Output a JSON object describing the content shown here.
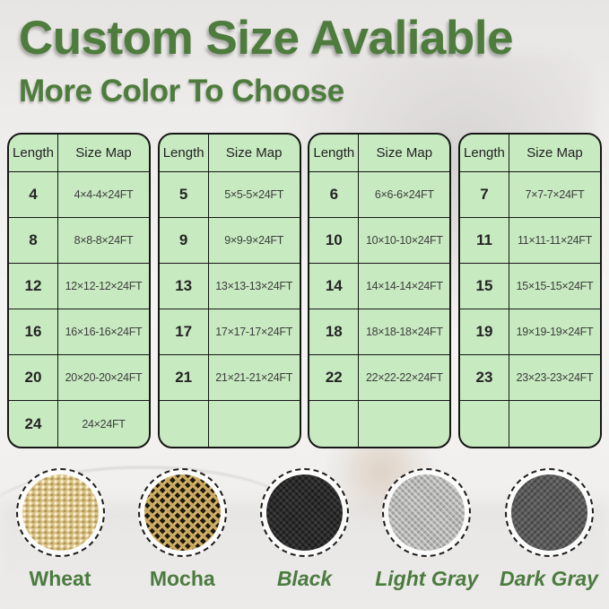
{
  "title": "Custom Size Avaliable",
  "subtitle": "More Color To Choose",
  "colors": {
    "heading_green": "#4d7c3d",
    "table_green": "#c8eac1",
    "table_border": "#161616",
    "label_green": "#4c7b40"
  },
  "tables": [
    {
      "headers": [
        "Length",
        "Size Map"
      ],
      "rows": [
        [
          "4",
          "4×4-4×24FT"
        ],
        [
          "8",
          "8×8-8×24FT"
        ],
        [
          "12",
          "12×12-12×24FT"
        ],
        [
          "16",
          "16×16-16×24FT"
        ],
        [
          "20",
          "20×20-20×24FT"
        ],
        [
          "24",
          "24×24FT"
        ]
      ]
    },
    {
      "headers": [
        "Length",
        "Size Map"
      ],
      "rows": [
        [
          "5",
          "5×5-5×24FT"
        ],
        [
          "9",
          "9×9-9×24FT"
        ],
        [
          "13",
          "13×13-13×24FT"
        ],
        [
          "17",
          "17×17-17×24FT"
        ],
        [
          "21",
          "21×21-21×24FT"
        ],
        [
          "",
          ""
        ]
      ]
    },
    {
      "headers": [
        "Length",
        "Size Map"
      ],
      "rows": [
        [
          "6",
          "6×6-6×24FT"
        ],
        [
          "10",
          "10×10-10×24FT"
        ],
        [
          "14",
          "14×14-14×24FT"
        ],
        [
          "18",
          "18×18-18×24FT"
        ],
        [
          "22",
          "22×22-22×24FT"
        ],
        [
          "",
          ""
        ]
      ]
    },
    {
      "headers": [
        "Length",
        "Size Map"
      ],
      "rows": [
        [
          "7",
          "7×7-7×24FT"
        ],
        [
          "11",
          "11×11-11×24FT"
        ],
        [
          "15",
          "15×15-15×24FT"
        ],
        [
          "19",
          "19×19-19×24FT"
        ],
        [
          "23",
          "23×23-23×24FT"
        ],
        [
          "",
          ""
        ]
      ]
    }
  ],
  "swatches": [
    {
      "name": "Wheat",
      "color": "#d9c184",
      "texture": "wheat",
      "italic": false
    },
    {
      "name": "Mocha",
      "color": "#8a744a",
      "texture": "mocha",
      "italic": false
    },
    {
      "name": "Black",
      "color": "#2b2b2b",
      "texture": "black",
      "italic": true
    },
    {
      "name": "Light Gray",
      "color": "#b4b4b2",
      "texture": "lightgray",
      "italic": true
    },
    {
      "name": "Dark Gray",
      "color": "#5d5d5d",
      "texture": "darkgray",
      "italic": true
    }
  ]
}
